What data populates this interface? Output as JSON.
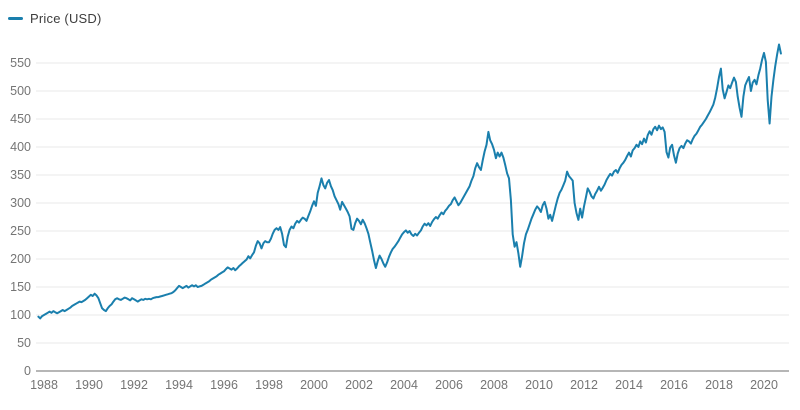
{
  "legend": {
    "label": "Price (USD)"
  },
  "colors": {
    "line": "#1a7fad",
    "grid": "#e8e8e8",
    "axis": "#9e9e9e",
    "tick_text": "#757575",
    "legend_text": "#3d3d3d",
    "background": "#ffffff"
  },
  "chart_data": {
    "type": "line",
    "title": "",
    "xlabel": "",
    "ylabel": "",
    "legend_position": "top-left",
    "grid": "horizontal",
    "xticks": [
      1988,
      1990,
      1992,
      1994,
      1996,
      1998,
      2000,
      2002,
      2004,
      2006,
      2008,
      2010,
      2012,
      2014,
      2016,
      2018,
      2020
    ],
    "yticks": [
      0,
      50,
      100,
      150,
      200,
      250,
      300,
      350,
      400,
      450,
      500,
      550
    ],
    "xlim": [
      1987.6,
      2021.1
    ],
    "ylim": [
      0,
      589
    ],
    "series": [
      {
        "name": "Price (USD)",
        "start_year": 1987.75,
        "interval_years": 0.0833333,
        "values": [
          97,
          94,
          98,
          100,
          102,
          104,
          106,
          104,
          107,
          105,
          103,
          105,
          107,
          109,
          107,
          109,
          111,
          113,
          116,
          118,
          120,
          122,
          124,
          123,
          125,
          127,
          130,
          133,
          136,
          134,
          138,
          135,
          130,
          121,
          112,
          109,
          107,
          112,
          116,
          119,
          124,
          128,
          130,
          128,
          127,
          129,
          131,
          130,
          128,
          126,
          130,
          128,
          126,
          124,
          126,
          128,
          127,
          129,
          128,
          129,
          128,
          130,
          131,
          132,
          132,
          133,
          134,
          135,
          136,
          137,
          138,
          139,
          141,
          144,
          148,
          152,
          150,
          148,
          150,
          152,
          149,
          151,
          153,
          151,
          153,
          150,
          151,
          152,
          154,
          156,
          158,
          160,
          163,
          165,
          167,
          169,
          172,
          174,
          176,
          178,
          182,
          185,
          183,
          181,
          184,
          180,
          183,
          187,
          190,
          193,
          196,
          199,
          205,
          201,
          207,
          212,
          224,
          232,
          228,
          219,
          228,
          232,
          230,
          230,
          236,
          245,
          252,
          255,
          252,
          257,
          245,
          225,
          221,
          240,
          252,
          258,
          255,
          263,
          268,
          265,
          270,
          274,
          272,
          268,
          277,
          285,
          295,
          303,
          295,
          318,
          330,
          344,
          332,
          326,
          336,
          341,
          330,
          323,
          312,
          305,
          298,
          288,
          302,
          296,
          290,
          284,
          276,
          254,
          252,
          264,
          272,
          268,
          262,
          270,
          264,
          255,
          245,
          230,
          215,
          198,
          184,
          196,
          206,
          200,
          192,
          186,
          194,
          204,
          212,
          218,
          222,
          227,
          232,
          238,
          244,
          248,
          251,
          247,
          250,
          244,
          241,
          245,
          242,
          247,
          251,
          258,
          263,
          260,
          264,
          259,
          266,
          271,
          275,
          272,
          278,
          283,
          280,
          286,
          290,
          295,
          298,
          305,
          310,
          303,
          296,
          300,
          306,
          312,
          318,
          324,
          330,
          340,
          348,
          362,
          371,
          364,
          359,
          376,
          392,
          404,
          427,
          412,
          405,
          395,
          380,
          390,
          383,
          390,
          381,
          368,
          353,
          344,
          305,
          244,
          222,
          230,
          210,
          186,
          205,
          228,
          244,
          252,
          262,
          272,
          280,
          288,
          294,
          290,
          284,
          296,
          302,
          290,
          272,
          279,
          268,
          282,
          296,
          308,
          318,
          324,
          332,
          340,
          356,
          348,
          344,
          340,
          300,
          282,
          270,
          290,
          274,
          294,
          310,
          326,
          320,
          312,
          308,
          316,
          322,
          329,
          322,
          327,
          333,
          341,
          347,
          352,
          349,
          356,
          359,
          354,
          362,
          368,
          372,
          377,
          384,
          390,
          383,
          394,
          398,
          404,
          400,
          410,
          405,
          415,
          408,
          421,
          428,
          422,
          432,
          436,
          430,
          438,
          432,
          435,
          427,
          391,
          381,
          399,
          404,
          385,
          372,
          388,
          398,
          402,
          398,
          406,
          412,
          410,
          406,
          414,
          420,
          424,
          430,
          436,
          440,
          445,
          450,
          456,
          462,
          469,
          476,
          488,
          505,
          525,
          540,
          503,
          487,
          498,
          510,
          505,
          515,
          524,
          516,
          490,
          470,
          454,
          490,
          510,
          518,
          525,
          500,
          515,
          520,
          512,
          528,
          540,
          556,
          568,
          552,
          484,
          442,
          490,
          520,
          544,
          565,
          583,
          567
        ]
      }
    ]
  }
}
